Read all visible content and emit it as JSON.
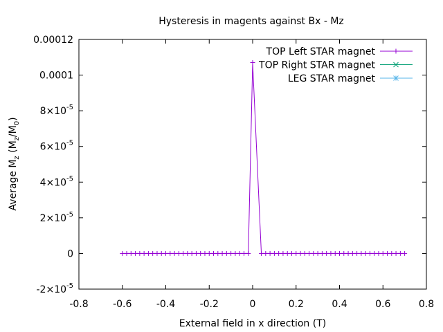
{
  "chart_data": {
    "type": "line",
    "title": "Hysteresis in magents against Bx - Mz",
    "xlabel": "External field in x direction (T)",
    "ylabel_parts": [
      "Average M",
      "z",
      " (M",
      "z",
      "/M",
      "0",
      ")"
    ],
    "xlim": [
      -0.8,
      0.8
    ],
    "ylim": [
      -2e-05,
      0.00012
    ],
    "grid": false,
    "legend_position": "top-right",
    "x_ticks": [
      {
        "value": -0.8,
        "label": "-0.8"
      },
      {
        "value": -0.6,
        "label": "-0.6"
      },
      {
        "value": -0.4,
        "label": "-0.4"
      },
      {
        "value": -0.2,
        "label": "-0.2"
      },
      {
        "value": 0,
        "label": "0"
      },
      {
        "value": 0.2,
        "label": "0.2"
      },
      {
        "value": 0.4,
        "label": "0.4"
      },
      {
        "value": 0.6,
        "label": "0.6"
      },
      {
        "value": 0.8,
        "label": "0.8"
      }
    ],
    "y_ticks": [
      {
        "value": 0.00012,
        "mant": "0.00012",
        "exp": ""
      },
      {
        "value": 0.0001,
        "mant": "0.0001",
        "exp": ""
      },
      {
        "value": 8e-05,
        "mant": "8×10",
        "exp": "-5"
      },
      {
        "value": 6e-05,
        "mant": "6×10",
        "exp": "-5"
      },
      {
        "value": 4e-05,
        "mant": "4×10",
        "exp": "-5"
      },
      {
        "value": 2e-05,
        "mant": "2×10",
        "exp": "-5"
      },
      {
        "value": 0,
        "mant": "0",
        "exp": ""
      },
      {
        "value": -2e-05,
        "mant": "-2×10",
        "exp": "-5"
      }
    ],
    "series": [
      {
        "name": "TOP Left STAR magnet",
        "color": "#9400d3",
        "marker": "plus",
        "x": [
          -0.6,
          -0.58,
          -0.56,
          -0.54,
          -0.52,
          -0.5,
          -0.48,
          -0.46,
          -0.44,
          -0.42,
          -0.4,
          -0.38,
          -0.36,
          -0.34,
          -0.32,
          -0.3,
          -0.28,
          -0.26,
          -0.24,
          -0.22,
          -0.2,
          -0.18,
          -0.16,
          -0.14,
          -0.12,
          -0.1,
          -0.08,
          -0.06,
          -0.04,
          -0.02,
          0,
          0.04,
          0.06,
          0.08,
          0.1,
          0.12,
          0.14,
          0.16,
          0.18,
          0.2,
          0.22,
          0.24,
          0.26,
          0.28,
          0.3,
          0.32,
          0.34,
          0.36,
          0.38,
          0.4,
          0.42,
          0.44,
          0.46,
          0.48,
          0.5,
          0.52,
          0.54,
          0.56,
          0.58,
          0.6,
          0.62,
          0.64,
          0.66,
          0.68,
          0.7
        ],
        "y": [
          0,
          0,
          0,
          0,
          0,
          0,
          0,
          0,
          0,
          0,
          0,
          0,
          0,
          0,
          0,
          0,
          0,
          0,
          0,
          0,
          0,
          0,
          0,
          0,
          0,
          0,
          0,
          0,
          0,
          0,
          0.000107,
          0,
          0,
          0,
          0,
          0,
          0,
          0,
          0,
          0,
          0,
          0,
          0,
          0,
          0,
          0,
          0,
          0,
          0,
          0,
          0,
          0,
          0,
          0,
          0,
          0,
          0,
          0,
          0,
          0,
          0,
          0,
          0,
          0,
          0
        ]
      },
      {
        "name": "TOP Right STAR magnet",
        "color": "#009e73",
        "marker": "cross",
        "x": [],
        "y": []
      },
      {
        "name": "LEG STAR magnet",
        "color": "#56b4e9",
        "marker": "star",
        "x": [],
        "y": []
      }
    ]
  }
}
